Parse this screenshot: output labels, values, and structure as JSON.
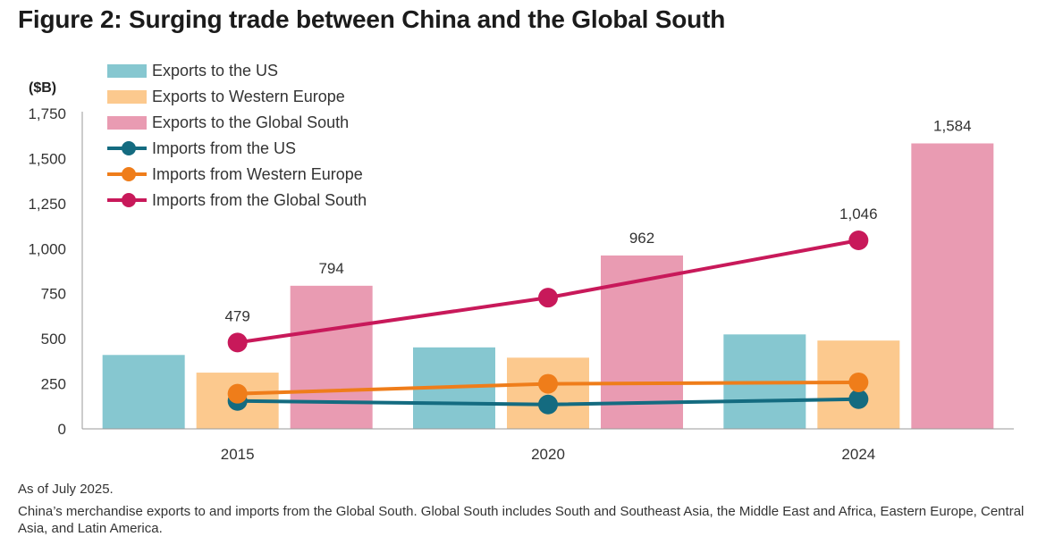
{
  "chart_data": {
    "type": "bar",
    "title": "Figure 2: Surging trade between China and the Global South",
    "ylabel": "($B)",
    "xlabel": "",
    "ylim": [
      0,
      1750
    ],
    "yticks": [
      0,
      250,
      500,
      750,
      1000,
      1250,
      1500,
      1750
    ],
    "ytick_labels": [
      "0",
      "250",
      "500",
      "750",
      "1,000",
      "1,250",
      "1,500",
      "1,750"
    ],
    "categories": [
      "2015",
      "2020",
      "2024"
    ],
    "grid": false,
    "legend_position": "top-left",
    "bar_series": [
      {
        "name": "Exports to the US",
        "color": "#86c7d0",
        "values": [
          410,
          452,
          524
        ]
      },
      {
        "name": "Exports to Western Europe",
        "color": "#fcc98e",
        "values": [
          312,
          395,
          490
        ]
      },
      {
        "name": "Exports to the Global South",
        "color": "#e99bb2",
        "values": [
          794,
          962,
          1584
        ],
        "labels": [
          "794",
          "962",
          "1,584"
        ]
      }
    ],
    "line_series": [
      {
        "name": "Imports from the US",
        "color": "#146b80",
        "values": [
          155,
          135,
          165
        ]
      },
      {
        "name": "Imports from Western Europe",
        "color": "#ef7d1a",
        "values": [
          195,
          250,
          258
        ]
      },
      {
        "name": "Imports from the Global South",
        "color": "#c8195a",
        "values": [
          479,
          728,
          1046
        ],
        "labels": [
          "479",
          "",
          "1,046"
        ]
      }
    ]
  },
  "notes": {
    "as_of": "As of July 2025.",
    "description": "China’s merchandise exports to and imports from the Global South. Global South includes South and Southeast Asia, the Middle East and Africa, Eastern Europe, Central Asia, and Latin America."
  }
}
